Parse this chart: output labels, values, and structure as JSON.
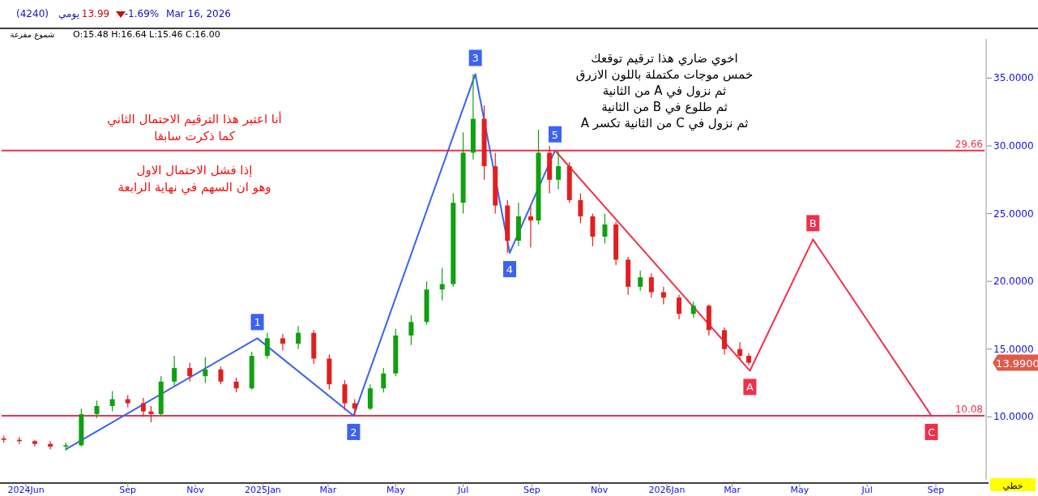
{
  "chart_data": {
    "type": "candlestick",
    "x": [
      "2024-05-12",
      "2024-05-26",
      "2024-06-09",
      "2024-06-23",
      "2024-07-07",
      "2024-07-21",
      "2024-08-04",
      "2024-08-18",
      "2024-09-01",
      "2024-09-15",
      "2024-09-22",
      "2024-10-01",
      "2024-10-13",
      "2024-10-27",
      "2024-11-10",
      "2024-11-24",
      "2024-12-08",
      "2024-12-22",
      "2025-01-05",
      "2025-01-19",
      "2025-02-02",
      "2025-02-16",
      "2025-03-02",
      "2025-03-16",
      "2025-03-25",
      "2025-04-08",
      "2025-04-20",
      "2025-05-01",
      "2025-05-15",
      "2025-05-29",
      "2025-06-12",
      "2025-06-22",
      "2025-07-01",
      "2025-07-10",
      "2025-07-20",
      "2025-07-30",
      "2025-08-10",
      "2025-08-20",
      "2025-08-31",
      "2025-09-07",
      "2025-09-17",
      "2025-09-25",
      "2025-10-05",
      "2025-10-15",
      "2025-10-26",
      "2025-11-06",
      "2025-11-16",
      "2025-11-27",
      "2025-12-08",
      "2025-12-18",
      "2025-12-29",
      "2026-01-12",
      "2026-01-25",
      "2026-02-08",
      "2026-02-22",
      "2026-03-08",
      "2026-03-16"
    ],
    "ohlc": [
      [
        8.4,
        8.6,
        8.1,
        8.3
      ],
      [
        8.3,
        8.5,
        8.0,
        8.2
      ],
      [
        8.2,
        8.3,
        7.8,
        8.0
      ],
      [
        8.0,
        8.2,
        7.6,
        7.8
      ],
      [
        7.8,
        8.1,
        7.5,
        7.9
      ],
      [
        7.9,
        10.6,
        7.8,
        10.2
      ],
      [
        10.2,
        11.2,
        9.9,
        10.8
      ],
      [
        10.8,
        11.9,
        10.4,
        11.3
      ],
      [
        11.3,
        11.6,
        10.7,
        11.0
      ],
      [
        11.0,
        11.4,
        10.0,
        10.4
      ],
      [
        10.4,
        10.8,
        9.6,
        10.2
      ],
      [
        10.2,
        13.0,
        10.1,
        12.6
      ],
      [
        12.6,
        14.5,
        12.3,
        13.6
      ],
      [
        13.6,
        14.0,
        12.6,
        13.0
      ],
      [
        13.0,
        14.4,
        12.5,
        13.5
      ],
      [
        13.5,
        13.7,
        12.4,
        12.6
      ],
      [
        12.6,
        12.9,
        11.8,
        12.1
      ],
      [
        12.1,
        14.8,
        12.0,
        14.5
      ],
      [
        14.5,
        16.2,
        14.3,
        15.8
      ],
      [
        15.8,
        16.1,
        14.9,
        15.4
      ],
      [
        15.4,
        16.7,
        15.0,
        16.2
      ],
      [
        16.2,
        16.4,
        13.9,
        14.3
      ],
      [
        14.3,
        14.6,
        12.0,
        12.4
      ],
      [
        12.4,
        12.7,
        10.5,
        11.0
      ],
      [
        11.0,
        11.3,
        10.1,
        10.6
      ],
      [
        10.6,
        12.4,
        10.5,
        12.1
      ],
      [
        12.1,
        13.6,
        11.8,
        13.2
      ],
      [
        13.2,
        16.5,
        13.0,
        16.0
      ],
      [
        16.0,
        17.5,
        15.3,
        17.0
      ],
      [
        17.0,
        20.0,
        16.8,
        19.4
      ],
      [
        19.4,
        21.0,
        18.6,
        19.8
      ],
      [
        19.8,
        26.5,
        19.6,
        25.8
      ],
      [
        25.8,
        31.0,
        25.0,
        29.5
      ],
      [
        29.5,
        35.3,
        29.0,
        32.0
      ],
      [
        32.0,
        33.0,
        27.5,
        28.5
      ],
      [
        28.5,
        29.5,
        25.0,
        25.6
      ],
      [
        25.6,
        26.0,
        22.1,
        23.0
      ],
      [
        23.0,
        25.8,
        22.6,
        24.8
      ],
      [
        24.8,
        25.5,
        22.5,
        24.5
      ],
      [
        24.5,
        31.2,
        24.2,
        29.5
      ],
      [
        29.5,
        30.0,
        26.5,
        27.5
      ],
      [
        27.5,
        29.7,
        26.8,
        28.5
      ],
      [
        28.5,
        28.8,
        25.8,
        26.0
      ],
      [
        26.0,
        26.5,
        24.3,
        24.8
      ],
      [
        24.8,
        25.0,
        22.6,
        23.3
      ],
      [
        23.3,
        25.0,
        22.8,
        24.2
      ],
      [
        24.2,
        24.4,
        21.2,
        21.6
      ],
      [
        21.6,
        21.8,
        19.0,
        19.6
      ],
      [
        19.6,
        20.8,
        19.3,
        20.3
      ],
      [
        20.3,
        20.6,
        18.8,
        19.2
      ],
      [
        19.2,
        19.6,
        18.3,
        18.8
      ],
      [
        18.8,
        19.0,
        17.2,
        17.6
      ],
      [
        17.6,
        18.5,
        17.3,
        18.2
      ],
      [
        18.2,
        18.3,
        16.0,
        16.4
      ],
      [
        16.4,
        16.6,
        14.6,
        15.0
      ],
      [
        15.0,
        15.5,
        14.2,
        14.5
      ],
      [
        14.5,
        14.7,
        13.8,
        13.99
      ]
    ],
    "colors": [
      "#e02020",
      "#e02020",
      "#e02020",
      "#e02020",
      "#10a010",
      "#10a010",
      "#10a010",
      "#10a010",
      "#e02020",
      "#e02020",
      "#e02020",
      "#10a010",
      "#10a010",
      "#e02020",
      "#10a010",
      "#e02020",
      "#e02020",
      "#10a010",
      "#10a010",
      "#e02020",
      "#10a010",
      "#e02020",
      "#e02020",
      "#e02020",
      "#e02020",
      "#10a010",
      "#10a010",
      "#10a010",
      "#10a010",
      "#10a010",
      "#10a010",
      "#10a010",
      "#10a010",
      "#10a010",
      "#e02020",
      "#e02020",
      "#e02020",
      "#10a010",
      "#e02020",
      "#10a010",
      "#e02020",
      "#10a010",
      "#e02020",
      "#e02020",
      "#e02020",
      "#10a010",
      "#e02020",
      "#e02020",
      "#10a010",
      "#e02020",
      "#e02020",
      "#e02020",
      "#10a010",
      "#e02020",
      "#e02020",
      "#e02020",
      "#e02020"
    ],
    "series": [
      {
        "type": "line",
        "color": "#3b63f0",
        "x": [
          "2024-07-07",
          "2024-12-27",
          "2025-03-24",
          "2025-07-12",
          "2025-08-12",
          "2025-09-22"
        ],
        "values": [
          7.6,
          15.8,
          10.08,
          35.3,
          22.1,
          29.66
        ]
      },
      {
        "type": "line",
        "color": "#f0304a",
        "x": [
          "2025-09-22",
          "2026-03-17",
          "2026-05-13",
          "2026-08-28"
        ],
        "values": [
          29.66,
          13.4,
          23.1,
          10.08
        ]
      }
    ],
    "ref_lines": [
      {
        "axis": "y",
        "value": 29.66,
        "label": "29.66",
        "color": "#f0304a"
      },
      {
        "axis": "y",
        "value": 10.08,
        "label": "10.08",
        "color": "#f0304a"
      }
    ],
    "xlim": [
      "2024-05-10",
      "2026-10-15"
    ],
    "xticks": [
      {
        "value": "2024-06-01",
        "label": "2024Jun"
      },
      {
        "value": "2024-09-01",
        "label": "Sep"
      },
      {
        "value": "2024-11-01",
        "label": "Nov"
      },
      {
        "value": "2025-01-01",
        "label": "2025Jan"
      },
      {
        "value": "2025-03-01",
        "label": "Mar"
      },
      {
        "value": "2025-05-01",
        "label": "May"
      },
      {
        "value": "2025-07-01",
        "label": "Jul"
      },
      {
        "value": "2025-09-01",
        "label": "Sep"
      },
      {
        "value": "2025-11-01",
        "label": "Nov"
      },
      {
        "value": "2026-01-01",
        "label": "2026Jan"
      },
      {
        "value": "2026-03-01",
        "label": "Mar"
      },
      {
        "value": "2026-05-01",
        "label": "May"
      },
      {
        "value": "2026-07-01",
        "label": "Jul"
      },
      {
        "value": "2026-09-01",
        "label": "Sep"
      }
    ],
    "ylim": [
      5.35,
      37.9
    ],
    "yticks": [
      {
        "value": 10,
        "label": "10.0000"
      },
      {
        "value": 15,
        "label": "15.0000"
      },
      {
        "value": 20,
        "label": "20.0000"
      },
      {
        "value": 25,
        "label": "25.0000"
      },
      {
        "value": 30,
        "label": "30.0000"
      },
      {
        "value": 35,
        "label": "35.0000"
      }
    ],
    "annotations": [
      "(4240)",
      "يومي",
      "13.99",
      "-1.69%",
      "Mar 16, 2026",
      "شموع مفرغة",
      "O:15.48  H:16.64  L:15.46  C:16.00",
      "اخوي ضاري هذا ترقيم توقعك\nخمس موجات مكتملة باللون الازرق\nثم نزول في  A  من الثانية\nثم طلوع في  B  من الثانية\nثم نزول في  C  من الثانية تكسر  A",
      "أنا اعتبر هذا الترقيم الاحتمال الثاني\nكما ذكرت سابقا\n\nإذا فشل الاحتمال الاول\nوهو ان السهم في نهاية الرابعة",
      "خطي",
      "13.9900",
      {
        "text": "1",
        "x": "2024-12-27",
        "y": 15.8
      },
      {
        "text": "2",
        "x": "2025-03-24",
        "y": 10.08
      },
      {
        "text": "3",
        "x": "2025-07-12",
        "y": 35.3
      },
      {
        "text": "4",
        "x": "2025-08-12",
        "y": 22.1
      },
      {
        "text": "5",
        "x": "2025-09-22",
        "y": 29.66
      },
      {
        "text": "A",
        "x": "2026-03-17",
        "y": 13.4
      },
      {
        "text": "B",
        "x": "2026-05-13",
        "y": 23.1
      },
      {
        "text": "C",
        "x": "2026-08-28",
        "y": 10.08
      }
    ]
  }
}
